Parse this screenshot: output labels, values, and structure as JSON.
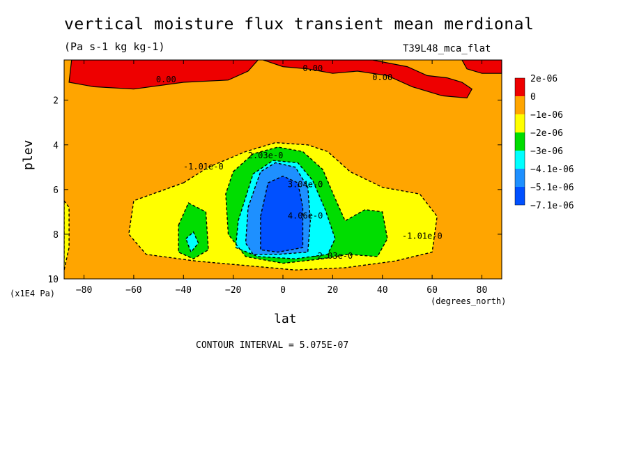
{
  "chart_data": {
    "type": "contour",
    "title": "vertical moisture flux transient mean merdional",
    "units": "(Pa s-1 kg kg-1)",
    "run_label": "T39L48_mca_flat",
    "xlabel": "lat",
    "x_unit": "(degrees_north)",
    "ylabel": "plev",
    "y_unit": "(x1E4 Pa)",
    "contour_interval_text": "CONTOUR INTERVAL = 5.075E-07",
    "xlim": [
      -88,
      88
    ],
    "ylim": [
      10,
      0.2
    ],
    "x_ticks": [
      -80,
      -60,
      -40,
      -20,
      0,
      20,
      40,
      60,
      80
    ],
    "y_ticks": [
      2,
      4,
      6,
      8,
      10
    ],
    "legend": [
      {
        "label": "2e-06",
        "color": "#ee0000"
      },
      {
        "label": "0",
        "color": "#ffa500"
      },
      {
        "label": "−1e-06",
        "color": "#ffff00"
      },
      {
        "label": "−2e-06",
        "color": "#00dd00"
      },
      {
        "label": "−3e-06",
        "color": "#00ffff"
      },
      {
        "label": "−4.1e-06",
        "color": "#1e90ff"
      },
      {
        "label": "−5.1e-06",
        "color": "#0050ff"
      },
      {
        "label": "−7.1e-06",
        "color": ""
      }
    ],
    "contour_labels": [
      {
        "text": "0.00",
        "x": -47,
        "y": 1.2
      },
      {
        "text": "0.00",
        "x": 12,
        "y": 0.7
      },
      {
        "text": "0.00",
        "x": 40,
        "y": 1.1
      },
      {
        "text": "-1.01e-0",
        "x": -32,
        "y": 5.1
      },
      {
        "text": "2.03e-0",
        "x": -7,
        "y": 4.6
      },
      {
        "text": "3.04e-0",
        "x": 9,
        "y": 5.9
      },
      {
        "text": "4.06e-0",
        "x": 9,
        "y": 7.3
      },
      {
        "text": "-2.03e-0",
        "x": 20,
        "y": 9.1
      },
      {
        "text": "-1.01e-0",
        "x": 56,
        "y": 8.2
      }
    ],
    "regions": [
      {
        "level": 0,
        "color": "#ffa500",
        "points": [
          [
            -88,
            0.2
          ],
          [
            88,
            0.2
          ],
          [
            88,
            10
          ],
          [
            -88,
            10
          ]
        ]
      },
      {
        "level": 1,
        "color": "#ee0000",
        "points": [
          [
            -85,
            0.2
          ],
          [
            -10,
            0.2
          ],
          [
            -14,
            0.7
          ],
          [
            -22,
            1.1
          ],
          [
            -40,
            1.2
          ],
          [
            -60,
            1.5
          ],
          [
            -76,
            1.4
          ],
          [
            -86,
            1.2
          ]
        ]
      },
      {
        "level": 1,
        "color": "#ee0000",
        "points": [
          [
            -8,
            0.2
          ],
          [
            36,
            0.2
          ],
          [
            50,
            0.5
          ],
          [
            58,
            0.9
          ],
          [
            66,
            1.0
          ],
          [
            72,
            1.2
          ],
          [
            76,
            1.5
          ],
          [
            74,
            1.9
          ],
          [
            64,
            1.8
          ],
          [
            52,
            1.4
          ],
          [
            42,
            0.9
          ],
          [
            30,
            0.7
          ],
          [
            20,
            0.8
          ],
          [
            10,
            0.6
          ],
          [
            0,
            0.5
          ]
        ]
      },
      {
        "level": 1,
        "color": "#ee0000",
        "points": [
          [
            72,
            0.2
          ],
          [
            88,
            0.2
          ],
          [
            88,
            0.8
          ],
          [
            80,
            0.8
          ],
          [
            74,
            0.6
          ]
        ]
      },
      {
        "level": 2,
        "color": "#ffff00",
        "points": [
          [
            -40,
            5.7
          ],
          [
            -30,
            5.0
          ],
          [
            -15,
            4.3
          ],
          [
            -3,
            3.9
          ],
          [
            10,
            4.0
          ],
          [
            18,
            4.3
          ],
          [
            27,
            5.2
          ],
          [
            40,
            5.9
          ],
          [
            55,
            6.2
          ],
          [
            62,
            7.2
          ],
          [
            60,
            8.8
          ],
          [
            45,
            9.2
          ],
          [
            25,
            9.5
          ],
          [
            5,
            9.6
          ],
          [
            -15,
            9.4
          ],
          [
            -35,
            9.2
          ],
          [
            -55,
            8.9
          ],
          [
            -62,
            8.0
          ],
          [
            -60,
            6.5
          ]
        ]
      },
      {
        "level": 2,
        "color": "#ffff00",
        "points": [
          [
            -88,
            6.5
          ],
          [
            -86,
            6.8
          ],
          [
            -86,
            8.6
          ],
          [
            -88,
            9.6
          ]
        ]
      },
      {
        "level": 3,
        "color": "#00dd00",
        "points": [
          [
            -20,
            5.2
          ],
          [
            -12,
            4.4
          ],
          [
            -2,
            4.1
          ],
          [
            8,
            4.3
          ],
          [
            16,
            5.1
          ],
          [
            21,
            6.4
          ],
          [
            25,
            7.4
          ],
          [
            33,
            6.9
          ],
          [
            40,
            7.0
          ],
          [
            42,
            8.2
          ],
          [
            38,
            9.0
          ],
          [
            26,
            8.9
          ],
          [
            16,
            9.1
          ],
          [
            0,
            9.3
          ],
          [
            -15,
            9.0
          ],
          [
            -22,
            8.0
          ],
          [
            -23,
            6.2
          ]
        ]
      },
      {
        "level": 3,
        "color": "#00dd00",
        "points": [
          [
            -42,
            7.6
          ],
          [
            -38,
            6.6
          ],
          [
            -31,
            7.0
          ],
          [
            -30,
            8.7
          ],
          [
            -36,
            9.1
          ],
          [
            -42,
            8.8
          ]
        ]
      },
      {
        "level": 4,
        "color": "#00ffff",
        "points": [
          [
            -18,
            7.4
          ],
          [
            -12,
            5.3
          ],
          [
            -4,
            4.7
          ],
          [
            6,
            4.8
          ],
          [
            12,
            5.6
          ],
          [
            17,
            6.9
          ],
          [
            21,
            8.2
          ],
          [
            18,
            8.9
          ],
          [
            5,
            9.1
          ],
          [
            -10,
            9.0
          ],
          [
            -19,
            8.6
          ]
        ]
      },
      {
        "level": 4,
        "color": "#00ffff",
        "points": [
          [
            -39,
            8.2
          ],
          [
            -36,
            7.9
          ],
          [
            -34,
            8.4
          ],
          [
            -37,
            8.8
          ]
        ]
      },
      {
        "level": 5,
        "color": "#1e90ff",
        "points": [
          [
            -14,
            6.8
          ],
          [
            -9,
            5.2
          ],
          [
            -3,
            4.8
          ],
          [
            5,
            5.0
          ],
          [
            10,
            5.9
          ],
          [
            11,
            7.4
          ],
          [
            10,
            8.8
          ],
          [
            -2,
            8.9
          ],
          [
            -12,
            8.9
          ],
          [
            -15,
            8.4
          ]
        ]
      },
      {
        "level": 6,
        "color": "#0050ff",
        "points": [
          [
            -9,
            7.2
          ],
          [
            -6,
            5.7
          ],
          [
            0,
            5.4
          ],
          [
            6,
            5.7
          ],
          [
            8,
            6.8
          ],
          [
            8,
            8.6
          ],
          [
            -2,
            8.8
          ],
          [
            -9,
            8.7
          ]
        ]
      }
    ]
  }
}
